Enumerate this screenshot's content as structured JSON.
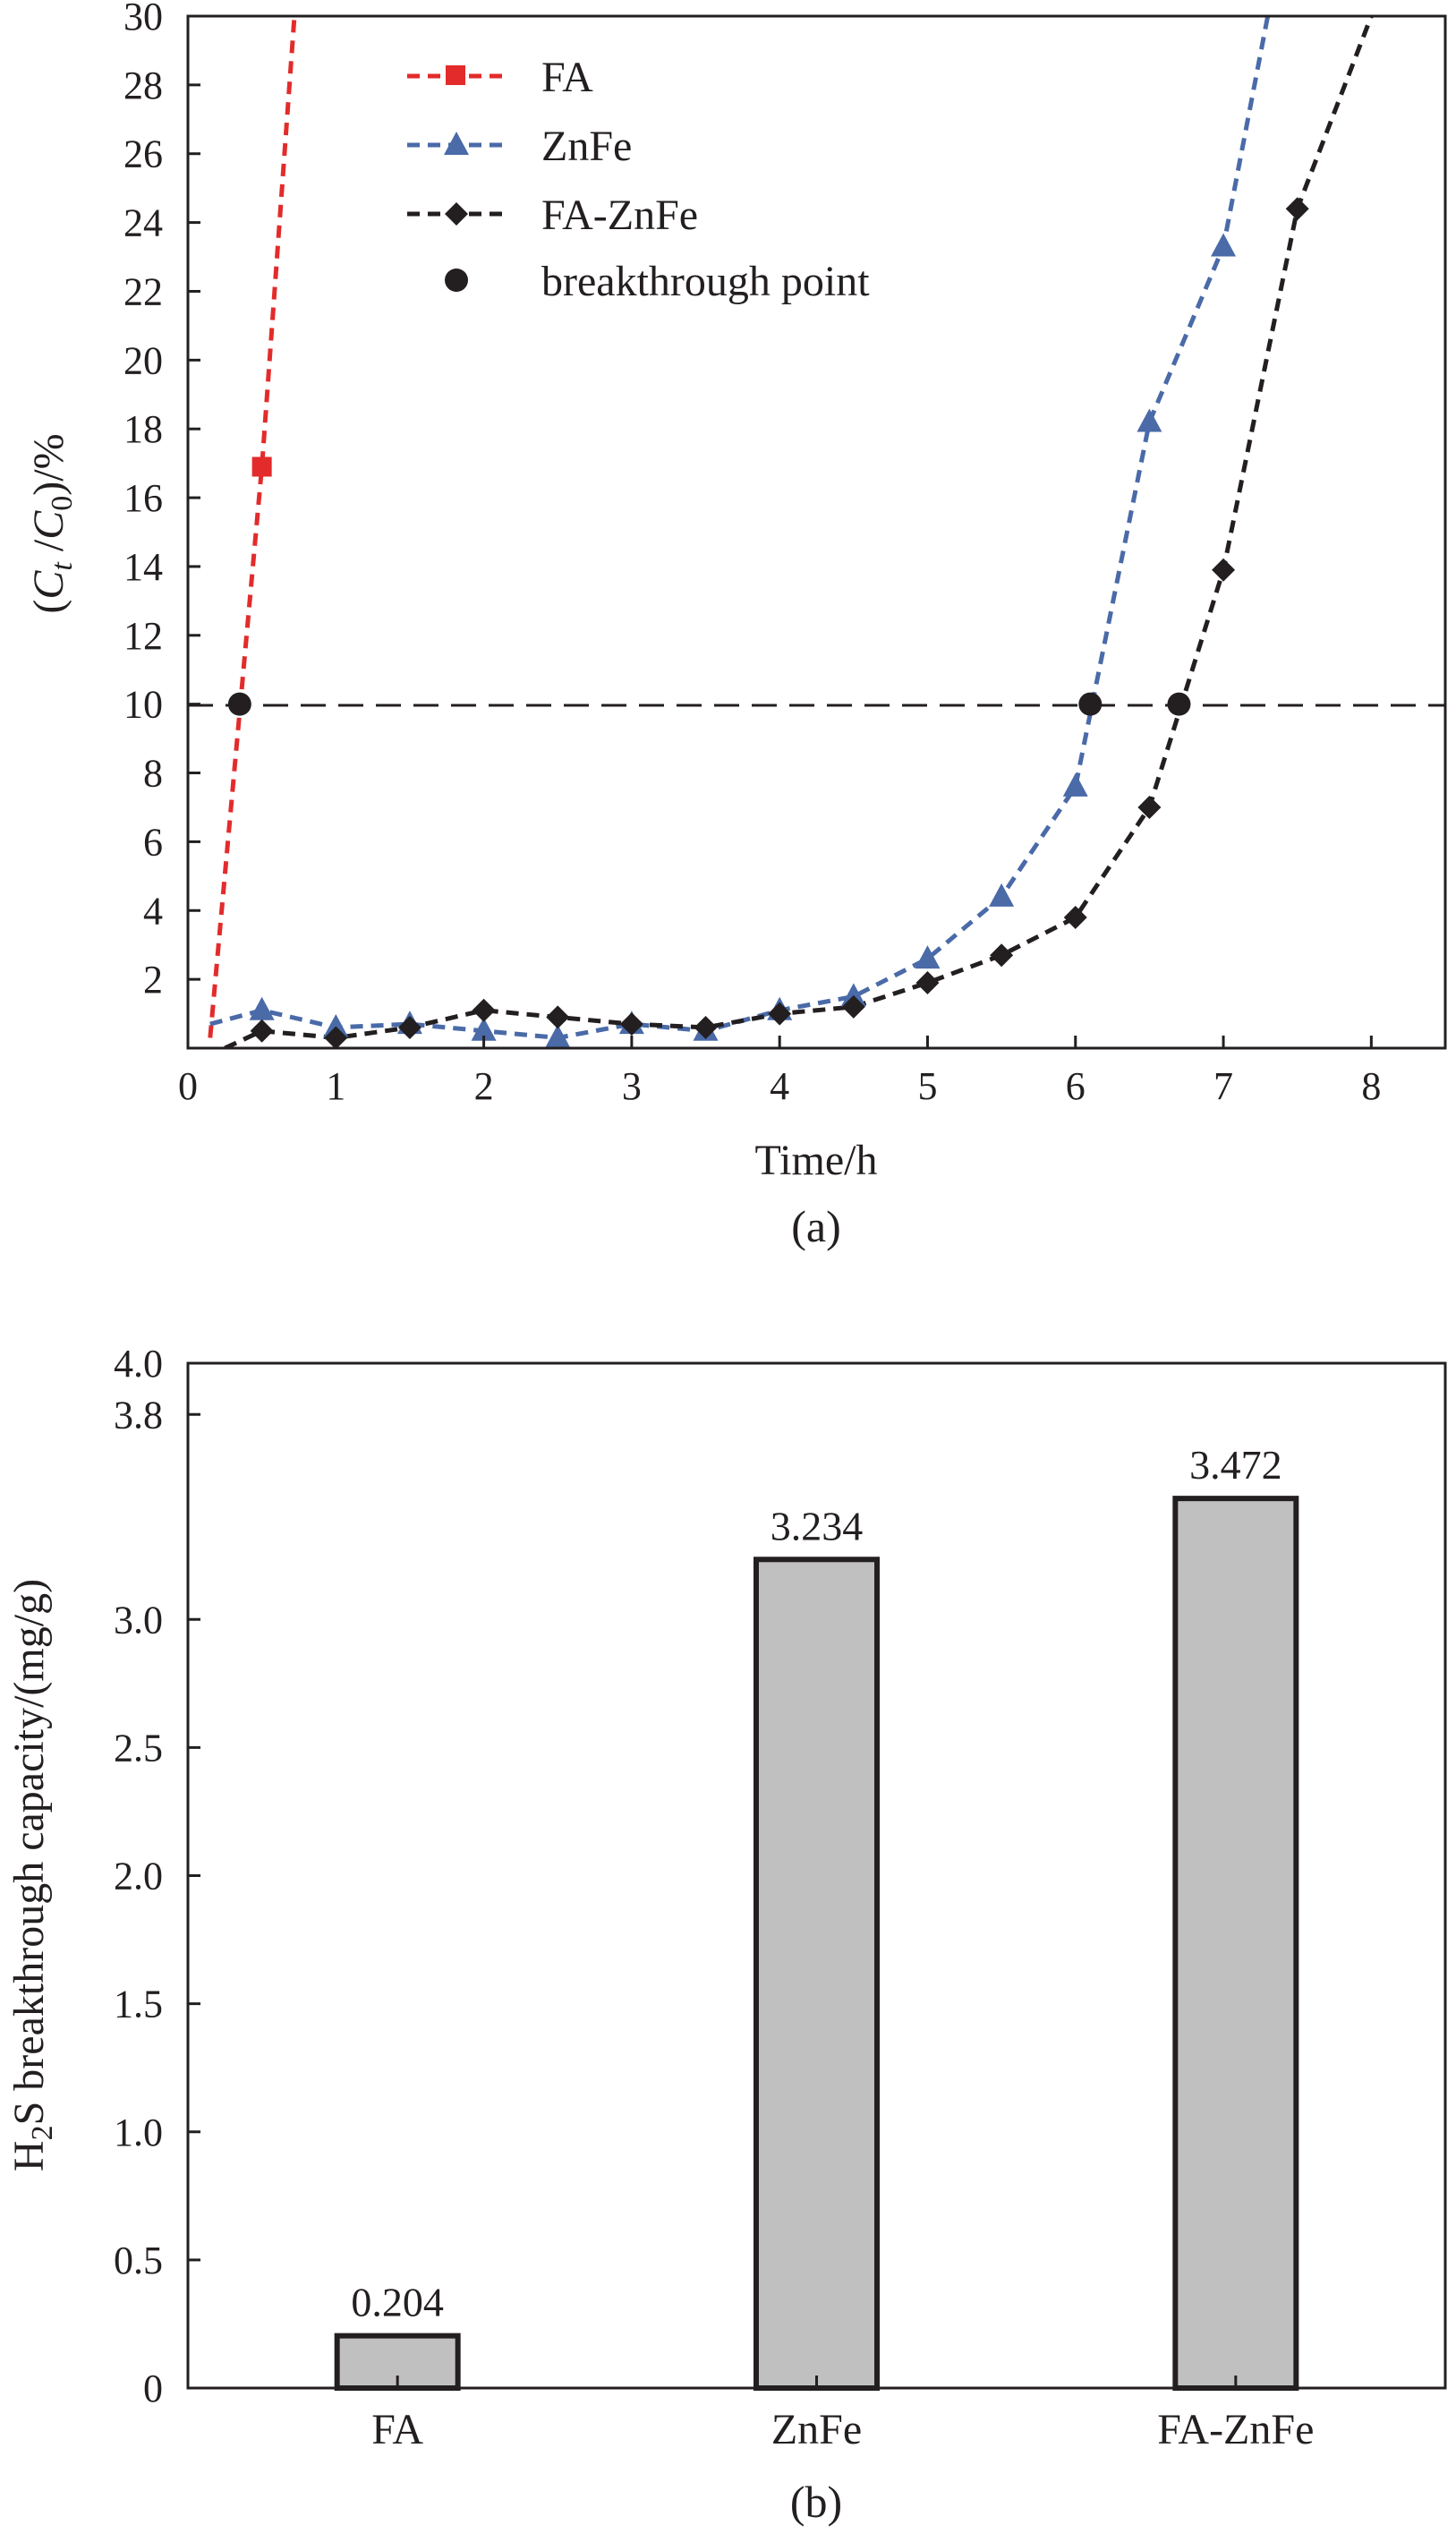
{
  "chart_data": [
    {
      "type": "line",
      "caption": "(a)",
      "xlabel": "Time/h",
      "ylabel": {
        "main": "(",
        "c1": "C",
        "s1": "t",
        "mid": " /",
        "c2": "C",
        "s2": "0",
        "end": ")/%"
      },
      "xlim": [
        0,
        8.5
      ],
      "ylim": [
        0,
        30
      ],
      "xticks": [
        0,
        1,
        2,
        3,
        4,
        5,
        6,
        7,
        8
      ],
      "xtick_labels": [
        "0",
        "1",
        "2",
        "3",
        "4",
        "5",
        "6",
        "7",
        "8"
      ],
      "yticks": [
        2,
        4,
        6,
        8,
        10,
        12,
        14,
        16,
        18,
        20,
        22,
        24,
        26,
        28,
        30
      ],
      "ytick_labels": [
        "2",
        "4",
        "6",
        "8",
        "10",
        "12",
        "14",
        "16",
        "18",
        "20",
        "22",
        "24",
        "26",
        "28",
        "30"
      ],
      "reference_line_y": 10,
      "series": [
        {
          "name": "FA",
          "color": "#e32b2b",
          "marker": "square",
          "x": [
            0.15,
            0.5,
            0.72
          ],
          "y": [
            0.3,
            16.9,
            30
          ],
          "marker_x": [
            0.5
          ],
          "marker_y": [
            16.9
          ]
        },
        {
          "name": "ZnFe",
          "color": "#4a6aa8",
          "marker": "triangle",
          "x": [
            0.15,
            0.5,
            1.0,
            1.5,
            2.0,
            2.5,
            3.0,
            3.5,
            4.0,
            4.5,
            5.0,
            5.5,
            6.0,
            6.5,
            7.0,
            7.3
          ],
          "y": [
            0.7,
            1.1,
            0.6,
            0.7,
            0.5,
            0.3,
            0.7,
            0.5,
            1.1,
            1.5,
            2.6,
            4.4,
            7.6,
            18.2,
            23.3,
            30
          ],
          "marker_x": [
            0.5,
            1.0,
            1.5,
            2.0,
            2.5,
            3.0,
            3.5,
            4.0,
            4.5,
            5.0,
            5.5,
            6.0,
            6.5,
            7.0
          ],
          "marker_y": [
            1.1,
            0.6,
            0.7,
            0.5,
            0.3,
            0.7,
            0.5,
            1.1,
            1.5,
            2.6,
            4.4,
            7.6,
            18.2,
            23.3
          ]
        },
        {
          "name": "FA-ZnFe",
          "color": "#231f20",
          "marker": "diamond",
          "x": [
            0.25,
            0.5,
            1.0,
            1.5,
            2.0,
            2.5,
            3.0,
            3.5,
            4.0,
            4.5,
            5.0,
            5.5,
            6.0,
            6.5,
            7.0,
            7.5,
            8.0
          ],
          "y": [
            0.0,
            0.5,
            0.3,
            0.6,
            1.1,
            0.9,
            0.7,
            0.6,
            1.0,
            1.2,
            1.9,
            2.7,
            3.8,
            7.0,
            13.9,
            24.4,
            30
          ],
          "marker_x": [
            0.5,
            1.0,
            1.5,
            2.0,
            2.5,
            3.0,
            3.5,
            4.0,
            4.5,
            5.0,
            5.5,
            6.0,
            6.5,
            7.0,
            7.5
          ],
          "marker_y": [
            0.5,
            0.3,
            0.6,
            1.1,
            0.9,
            0.7,
            0.6,
            1.0,
            1.2,
            1.9,
            2.7,
            3.8,
            7.0,
            13.9,
            24.4
          ]
        },
        {
          "name": "breakthrough point",
          "color": "#231f20",
          "marker": "circle",
          "x": [
            0.35,
            6.1,
            6.7
          ],
          "y": [
            10,
            10,
            10
          ]
        }
      ]
    },
    {
      "type": "bar",
      "caption": "(b)",
      "ylabel": {
        "a": "H",
        "sub": "2",
        "b": "S breakthrough capacity/(mg/g)"
      },
      "categories": [
        "FA",
        "ZnFe",
        "FA-ZnFe"
      ],
      "values": [
        0.204,
        3.234,
        3.472
      ],
      "value_labels": [
        "0.204",
        "3.234",
        "3.472"
      ],
      "yticks": [
        0,
        0.5,
        1.0,
        1.5,
        2.0,
        2.5,
        3.0,
        3.8,
        4.0
      ],
      "ytick_labels": [
        "0",
        "0.5",
        "1.0",
        "1.5",
        "2.0",
        "2.5",
        "3.0",
        "3.8",
        "4.0"
      ],
      "ylim": [
        0,
        4.0
      ],
      "bar_color": "#c0c0c0",
      "edge_color": "#231f20"
    }
  ]
}
